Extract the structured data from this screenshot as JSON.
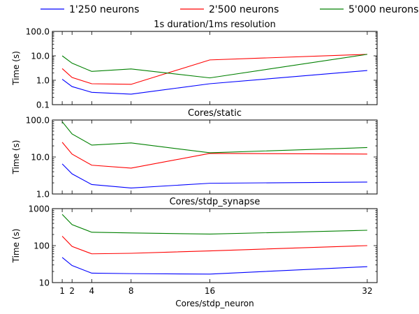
{
  "chart_data": {
    "type": "line",
    "legend": {
      "placement": "top",
      "entries": [
        {
          "label": "1'250 neurons",
          "color": "#0000ff"
        },
        {
          "label": "2'500 neurons",
          "color": "#ff0000"
        },
        {
          "label": "5'000 neurons",
          "color": "#008000"
        }
      ]
    },
    "x": [
      1,
      2,
      4,
      8,
      16,
      32
    ],
    "x_tick_labels": [
      "1",
      "2",
      "4",
      "8",
      "16",
      "32"
    ],
    "xlabel": "Cores/stdp_neuron",
    "panels": [
      {
        "title": "1s duration/1ms resolution",
        "ylabel": "Time (s)",
        "yscale": "log",
        "ylim": [
          0.1,
          100
        ],
        "yticks": [
          0.1,
          1,
          10,
          100
        ],
        "ytick_labels": [
          "0.1",
          "1.0",
          "10.0",
          "100.0"
        ],
        "series": [
          {
            "name": "1'250 neurons",
            "color": "#0000ff",
            "values": [
              1.1,
              0.55,
              0.32,
              0.27,
              0.72,
              2.5
            ]
          },
          {
            "name": "2'500 neurons",
            "color": "#ff0000",
            "values": [
              3.0,
              1.3,
              0.72,
              0.68,
              6.8,
              11.5
            ]
          },
          {
            "name": "5'000 neurons",
            "color": "#008000",
            "values": [
              10.0,
              5.0,
              2.3,
              2.9,
              1.25,
              11.5
            ]
          }
        ]
      },
      {
        "title": "Cores/static",
        "ylabel": "Time (s)",
        "yscale": "log",
        "ylim": [
          1,
          100
        ],
        "yticks": [
          1,
          10,
          100
        ],
        "ytick_labels": [
          "1.0",
          "10.0",
          "100.0"
        ],
        "series": [
          {
            "name": "1'250 neurons",
            "color": "#0000ff",
            "values": [
              6.5,
              3.5,
              1.8,
              1.45,
              1.95,
              2.1
            ]
          },
          {
            "name": "2'500 neurons",
            "color": "#ff0000",
            "values": [
              25,
              12,
              6.0,
              5.0,
              12.5,
              12.0
            ]
          },
          {
            "name": "5'000 neurons",
            "color": "#008000",
            "values": [
              90,
              42,
              21,
              24,
              13,
              18
            ]
          }
        ]
      },
      {
        "title": "Cores/stdp_synapse",
        "ylabel": "Time (s)",
        "yscale": "log",
        "ylim": [
          10,
          1000
        ],
        "yticks": [
          10,
          100,
          1000
        ],
        "ytick_labels": [
          "10",
          "100",
          "1000"
        ],
        "series": [
          {
            "name": "1'250 neurons",
            "color": "#0000ff",
            "values": [
              48,
              29,
              18,
              17.5,
              17,
              27
            ]
          },
          {
            "name": "2'500 neurons",
            "color": "#ff0000",
            "values": [
              180,
              95,
              60,
              62,
              72,
              100
            ]
          },
          {
            "name": "5'000 neurons",
            "color": "#008000",
            "values": [
              700,
              370,
              230,
              220,
              205,
              260
            ]
          }
        ]
      }
    ]
  }
}
